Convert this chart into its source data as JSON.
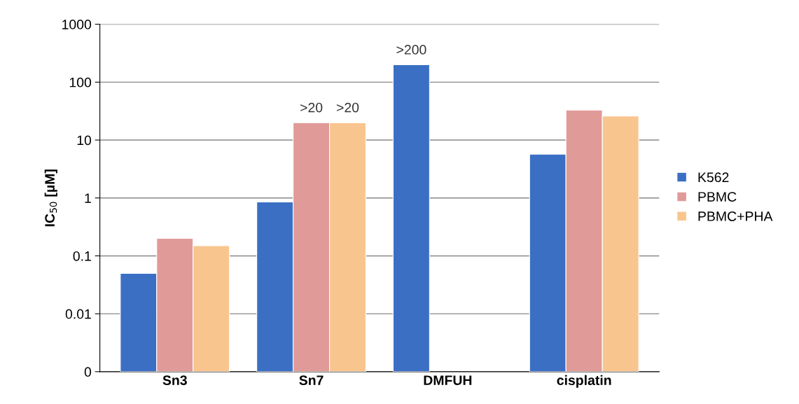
{
  "chart_data": {
    "type": "bar",
    "ylabel": "IC$_{50}$ [µM]",
    "log": "y",
    "categories": [
      "Sn3",
      "Sn7",
      "DMFUH",
      "cisplatin"
    ],
    "series": [
      {
        "name": "K562",
        "color": "#3a6fc4",
        "values": [
          0.05,
          0.85,
          200,
          5.7
        ],
        "value_labels": [
          null,
          null,
          ">200",
          null
        ]
      },
      {
        "name": "PBMC",
        "color": "#e09a98",
        "values": [
          0.2,
          20,
          null,
          33
        ],
        "value_labels": [
          null,
          ">20",
          null,
          null
        ]
      },
      {
        "name": "PBMC+PHA",
        "color": "#f9c58e",
        "values": [
          0.15,
          20,
          null,
          26
        ],
        "value_labels": [
          null,
          ">20",
          null,
          null
        ]
      }
    ],
    "ylim": [
      0.001,
      1000
    ],
    "yticks": [
      {
        "value": 0.001,
        "label": "0"
      },
      0.01,
      0.1,
      1,
      10,
      100,
      1000
    ],
    "grid": "y",
    "legend": "right"
  }
}
